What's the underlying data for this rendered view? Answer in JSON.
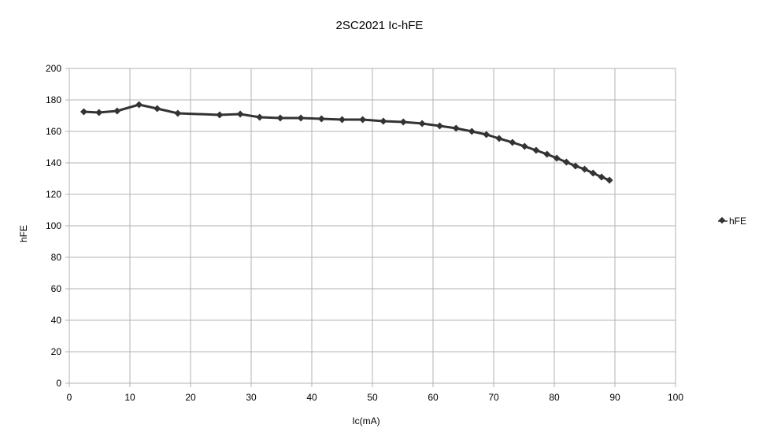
{
  "chart_data": {
    "type": "line",
    "title": "2SC2021 Ic-hFE",
    "xlabel": "Ic(mA)",
    "ylabel": "hFE",
    "xlim": [
      0,
      100
    ],
    "ylim": [
      0,
      200
    ],
    "xticks": [
      0,
      10,
      20,
      30,
      40,
      50,
      60,
      70,
      80,
      90,
      100
    ],
    "yticks": [
      0,
      20,
      40,
      60,
      80,
      100,
      120,
      140,
      160,
      180,
      200
    ],
    "grid": true,
    "legend_position": "right",
    "series": [
      {
        "name": "hFE",
        "color": "#333333",
        "marker": "diamond",
        "x": [
          2.4,
          4.9,
          7.9,
          11.5,
          14.5,
          17.9,
          24.8,
          28.2,
          31.4,
          34.8,
          38.2,
          41.6,
          45.0,
          48.4,
          51.8,
          55.1,
          58.2,
          61.1,
          63.8,
          66.4,
          68.8,
          70.9,
          73.1,
          75.1,
          77.0,
          78.8,
          80.4,
          82.0,
          83.5,
          85.0,
          86.4,
          87.8,
          89.1
        ],
        "y": [
          172.5,
          172,
          173,
          177,
          174.5,
          171.5,
          170.5,
          171,
          169,
          168.5,
          168.5,
          168,
          167.5,
          167.5,
          166.5,
          166,
          165,
          163.5,
          162,
          160,
          158,
          155.5,
          153,
          150.5,
          148,
          145.5,
          143,
          140.5,
          138,
          136,
          133.5,
          131,
          129
        ]
      }
    ]
  }
}
